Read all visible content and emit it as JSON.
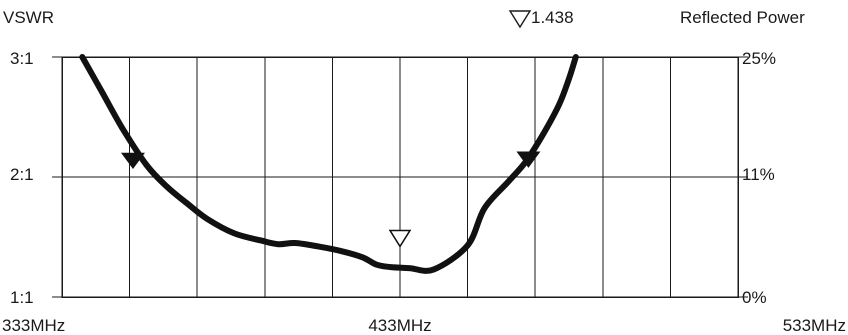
{
  "chart_data": {
    "type": "line",
    "title": "",
    "y_left_label": "VSWR",
    "y_right_label": "Reflected Power",
    "y_left_ticks": [
      "3:1",
      "2:1",
      "1:1"
    ],
    "y_right_ticks": [
      "25%",
      "11%",
      "0%"
    ],
    "x_ticks": [
      "333MHz",
      "433MHz",
      "533MHz"
    ],
    "xlim": [
      333,
      533
    ],
    "ylim": [
      1.0,
      3.0
    ],
    "grid": true,
    "marker_annotation": "1.438",
    "series": [
      {
        "values_x": [
          339,
          345,
          351,
          358,
          364,
          370,
          376,
          384,
          392,
          397,
          402,
          409,
          416,
          422,
          426,
          430,
          436,
          443,
          453,
          458,
          465,
          470,
          475,
          480,
          483,
          485
        ],
        "values_y": [
          3.0,
          2.7,
          2.4,
          2.1,
          1.92,
          1.78,
          1.65,
          1.53,
          1.47,
          1.44,
          1.45,
          1.42,
          1.38,
          1.33,
          1.27,
          1.25,
          1.24,
          1.23,
          1.43,
          1.74,
          1.96,
          2.12,
          2.34,
          2.6,
          2.82,
          3.0
        ]
      }
    ],
    "markers": [
      {
        "type": "filled-down-triangle",
        "x": 354,
        "y": 2.09
      },
      {
        "type": "hollow-down-triangle",
        "x": 433,
        "y": 1.438
      },
      {
        "type": "filled-down-triangle",
        "x": 471,
        "y": 2.1
      }
    ]
  }
}
